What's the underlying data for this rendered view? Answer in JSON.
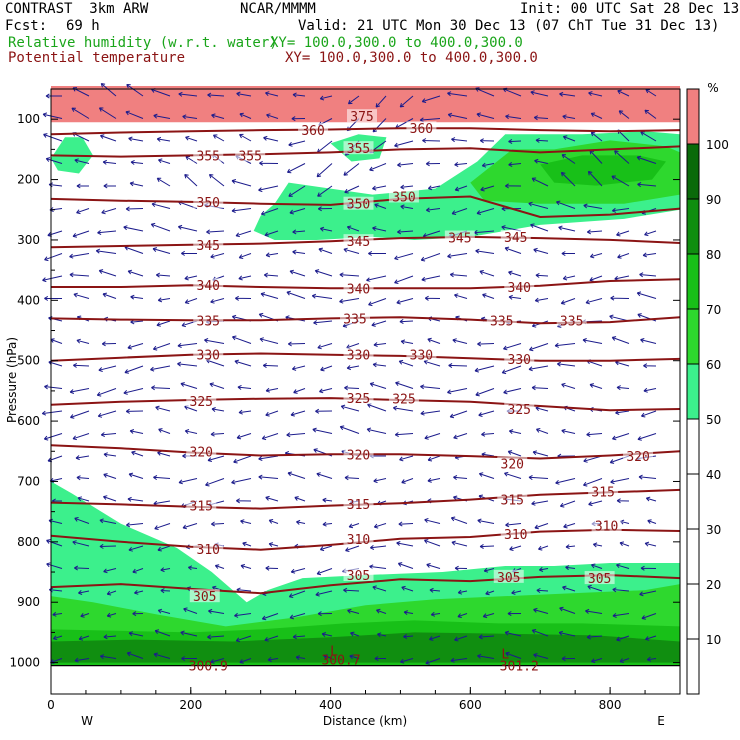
{
  "header": {
    "model": "CONTRAST  3km ARW",
    "org": "NCAR/MMMM",
    "init": "Init: 00 UTC Sat 28 Dec 13",
    "fcst_label": "Fcst:",
    "fcst_value": "69 h",
    "valid": "Valid: 21 UTC Mon 30 Dec 13 (07 ChT Tue 31 Dec 13)",
    "field1": "Relative humidity (w.r.t. water)",
    "field1_xy": "XY= 100.0,300.0 to 400.0,300.0",
    "field2": "Potential temperature",
    "field2_xy": "XY= 100.0,300.0 to 400.0,300.0"
  },
  "colors": {
    "theta": "#8b1414",
    "rh_text": "#1aa51a",
    "vector": "#1c1c8c",
    "rh_levels": [
      "#ffffff",
      "#ffffff",
      "#ffffff",
      "#ffffff",
      "#ffffff",
      "#3cf08c",
      "#2ed82e",
      "#18c018",
      "#108e10",
      "#0a6a0a",
      "#f08080"
    ]
  },
  "chart_data": {
    "type": "contour",
    "xlabel": "Distance (km)",
    "ylabel": "Pressure (hPa)",
    "xlim": [
      0,
      900
    ],
    "x_ticks": [
      0,
      200,
      400,
      600,
      800
    ],
    "x_tick_labels": [
      "0",
      "200",
      "400",
      "600",
      "800"
    ],
    "ylim": [
      1000,
      50
    ],
    "y_ticks": [
      100,
      200,
      300,
      400,
      500,
      600,
      700,
      800,
      900,
      1000
    ],
    "y_tick_labels": [
      "100",
      "200",
      "300",
      "400",
      "500",
      "600",
      "700",
      "800",
      "900",
      "1000"
    ],
    "west_label": "W",
    "east_label": "E",
    "colorbar": {
      "unit": "%",
      "levels": [
        0,
        10,
        20,
        30,
        40,
        50,
        60,
        70,
        80,
        90,
        100,
        110
      ],
      "tick_labels": [
        "10",
        "20",
        "30",
        "40",
        "50",
        "60",
        "70",
        "80",
        "90",
        "100"
      ]
    },
    "theta_contours": [
      {
        "value": 305,
        "x": [
          0,
          100,
          200,
          300,
          400,
          500,
          600,
          700,
          800,
          900
        ],
        "p": [
          875,
          870,
          878,
          885,
          872,
          862,
          865,
          858,
          855,
          860
        ]
      },
      {
        "value": 310,
        "x": [
          0,
          100,
          200,
          300,
          400,
          500,
          600,
          700,
          800,
          900
        ],
        "p": [
          790,
          800,
          808,
          813,
          805,
          795,
          792,
          783,
          780,
          782
        ]
      },
      {
        "value": 315,
        "x": [
          0,
          100,
          200,
          300,
          400,
          500,
          600,
          700,
          800,
          900
        ],
        "p": [
          735,
          738,
          742,
          745,
          740,
          736,
          730,
          722,
          718,
          714
        ]
      },
      {
        "value": 320,
        "x": [
          0,
          100,
          200,
          300,
          400,
          500,
          600,
          700,
          800,
          900
        ],
        "p": [
          640,
          645,
          652,
          657,
          655,
          655,
          658,
          662,
          657,
          650
        ]
      },
      {
        "value": 325,
        "x": [
          0,
          100,
          200,
          300,
          400,
          500,
          600,
          700,
          800,
          900
        ],
        "p": [
          573,
          568,
          565,
          563,
          562,
          565,
          568,
          575,
          582,
          580
        ]
      },
      {
        "value": 330,
        "x": [
          0,
          100,
          200,
          300,
          400,
          500,
          600,
          700,
          800,
          900
        ],
        "p": [
          500,
          495,
          490,
          488,
          490,
          492,
          496,
          500,
          500,
          497
        ]
      },
      {
        "value": 335,
        "x": [
          0,
          100,
          200,
          300,
          400,
          500,
          600,
          700,
          800,
          900
        ],
        "p": [
          430,
          432,
          433,
          433,
          430,
          428,
          432,
          438,
          436,
          428
        ]
      },
      {
        "value": 340,
        "x": [
          0,
          100,
          200,
          300,
          400,
          500,
          600,
          700,
          800,
          900
        ],
        "p": [
          378,
          378,
          375,
          378,
          380,
          380,
          380,
          376,
          368,
          365
        ]
      },
      {
        "value": 345,
        "x": [
          0,
          100,
          200,
          300,
          400,
          500,
          600,
          700,
          800,
          900
        ],
        "p": [
          312,
          310,
          308,
          306,
          302,
          297,
          295,
          297,
          300,
          305
        ]
      },
      {
        "value": 350,
        "x": [
          0,
          100,
          200,
          300,
          400,
          500,
          600,
          700,
          800,
          900
        ],
        "p": [
          232,
          235,
          237,
          240,
          242,
          232,
          228,
          262,
          258,
          248
        ]
      },
      {
        "value": 355,
        "x": [
          0,
          100,
          200,
          300,
          400,
          500,
          600,
          700,
          800,
          900
        ],
        "p": [
          160,
          162,
          160,
          158,
          155,
          150,
          148,
          155,
          150,
          145
        ]
      },
      {
        "value": 360,
        "x": [
          0,
          100,
          200,
          300,
          400,
          500,
          600,
          700,
          800,
          900
        ],
        "p": [
          125,
          122,
          120,
          118,
          117,
          115,
          115,
          118,
          120,
          118
        ]
      }
    ],
    "theta_labels": [
      {
        "text": "305",
        "x": 220,
        "p": 890
      },
      {
        "text": "305",
        "x": 440,
        "p": 855
      },
      {
        "text": "305",
        "x": 655,
        "p": 858
      },
      {
        "text": "305",
        "x": 785,
        "p": 860
      },
      {
        "text": "310",
        "x": 225,
        "p": 812
      },
      {
        "text": "310",
        "x": 440,
        "p": 795
      },
      {
        "text": "310",
        "x": 665,
        "p": 787
      },
      {
        "text": "310",
        "x": 795,
        "p": 773
      },
      {
        "text": "315",
        "x": 215,
        "p": 740
      },
      {
        "text": "315",
        "x": 440,
        "p": 737
      },
      {
        "text": "315",
        "x": 660,
        "p": 730
      },
      {
        "text": "315",
        "x": 790,
        "p": 717
      },
      {
        "text": "320",
        "x": 215,
        "p": 650
      },
      {
        "text": "320",
        "x": 440,
        "p": 655
      },
      {
        "text": "320",
        "x": 660,
        "p": 670
      },
      {
        "text": "320",
        "x": 840,
        "p": 658
      },
      {
        "text": "325",
        "x": 215,
        "p": 567
      },
      {
        "text": "325",
        "x": 440,
        "p": 562
      },
      {
        "text": "325",
        "x": 505,
        "p": 563
      },
      {
        "text": "325",
        "x": 670,
        "p": 580
      },
      {
        "text": "330",
        "x": 225,
        "p": 490
      },
      {
        "text": "330",
        "x": 440,
        "p": 490
      },
      {
        "text": "330",
        "x": 530,
        "p": 490
      },
      {
        "text": "330",
        "x": 670,
        "p": 497
      },
      {
        "text": "335",
        "x": 225,
        "p": 433
      },
      {
        "text": "335",
        "x": 435,
        "p": 430
      },
      {
        "text": "335",
        "x": 645,
        "p": 433
      },
      {
        "text": "335",
        "x": 745,
        "p": 433
      },
      {
        "text": "340",
        "x": 225,
        "p": 375
      },
      {
        "text": "340",
        "x": 440,
        "p": 380
      },
      {
        "text": "340",
        "x": 670,
        "p": 378
      },
      {
        "text": "345",
        "x": 225,
        "p": 308
      },
      {
        "text": "345",
        "x": 440,
        "p": 302
      },
      {
        "text": "345",
        "x": 585,
        "p": 296
      },
      {
        "text": "345",
        "x": 665,
        "p": 295
      },
      {
        "text": "350",
        "x": 225,
        "p": 237
      },
      {
        "text": "350",
        "x": 440,
        "p": 240
      },
      {
        "text": "350",
        "x": 505,
        "p": 228
      },
      {
        "text": "355",
        "x": 225,
        "p": 160
      },
      {
        "text": "355",
        "x": 285,
        "p": 160
      },
      {
        "text": "355",
        "x": 440,
        "p": 148
      },
      {
        "text": "360",
        "x": 375,
        "p": 118
      },
      {
        "text": "360",
        "x": 530,
        "p": 115
      },
      {
        "text": "375",
        "x": 445,
        "p": 95
      }
    ],
    "surface_labels": [
      {
        "text": "300.9",
        "x": 225,
        "p": 1005
      },
      {
        "text": "300.7",
        "x": 415,
        "p": 995
      },
      {
        "text": "301.2",
        "x": 670,
        "p": 1005
      }
    ],
    "low_markers": [
      {
        "text": "L",
        "x": 405,
        "p": 980
      },
      {
        "text": "L",
        "x": 650,
        "p": 985
      }
    ],
    "rh_regions": [
      {
        "level": 10,
        "points": [
          [
            0,
            45
          ],
          [
            900,
            45
          ],
          [
            900,
            105
          ],
          [
            0,
            105
          ]
        ]
      },
      {
        "level": 5,
        "points": [
          [
            0,
            910
          ],
          [
            0,
            700
          ],
          [
            30,
            720
          ],
          [
            100,
            770
          ],
          [
            180,
            810
          ],
          [
            230,
            850
          ],
          [
            280,
            900
          ],
          [
            310,
            880
          ],
          [
            360,
            860
          ],
          [
            450,
            855
          ],
          [
            560,
            850
          ],
          [
            650,
            840
          ],
          [
            720,
            840
          ],
          [
            800,
            835
          ],
          [
            900,
            835
          ],
          [
            900,
            1005
          ],
          [
            0,
            1005
          ]
        ]
      },
      {
        "level": 6,
        "points": [
          [
            0,
            1005
          ],
          [
            0,
            890
          ],
          [
            60,
            900
          ],
          [
            150,
            920
          ],
          [
            250,
            940
          ],
          [
            350,
            925
          ],
          [
            450,
            905
          ],
          [
            550,
            895
          ],
          [
            650,
            890
          ],
          [
            750,
            885
          ],
          [
            850,
            880
          ],
          [
            900,
            870
          ],
          [
            900,
            1005
          ]
        ]
      },
      {
        "level": 7,
        "points": [
          [
            0,
            1005
          ],
          [
            0,
            945
          ],
          [
            200,
            950
          ],
          [
            300,
            945
          ],
          [
            420,
            935
          ],
          [
            520,
            930
          ],
          [
            640,
            935
          ],
          [
            760,
            935
          ],
          [
            900,
            940
          ],
          [
            900,
            1005
          ]
        ]
      },
      {
        "level": 8,
        "points": [
          [
            0,
            1000
          ],
          [
            0,
            965
          ],
          [
            120,
            962
          ],
          [
            260,
            965
          ],
          [
            400,
            958
          ],
          [
            520,
            950
          ],
          [
            640,
            952
          ],
          [
            780,
            955
          ],
          [
            900,
            965
          ],
          [
            900,
            1000
          ]
        ]
      },
      {
        "level": 5,
        "points": [
          [
            0,
            165
          ],
          [
            20,
            130
          ],
          [
            45,
            130
          ],
          [
            60,
            160
          ],
          [
            40,
            190
          ],
          [
            10,
            185
          ]
        ]
      },
      {
        "level": 5,
        "points": [
          [
            340,
            205
          ],
          [
            400,
            215
          ],
          [
            460,
            225
          ],
          [
            550,
            215
          ],
          [
            610,
            170
          ],
          [
            650,
            125
          ],
          [
            760,
            125
          ],
          [
            850,
            120
          ],
          [
            900,
            125
          ],
          [
            900,
            250
          ],
          [
            820,
            265
          ],
          [
            700,
            275
          ],
          [
            600,
            295
          ],
          [
            520,
            300
          ],
          [
            460,
            295
          ],
          [
            380,
            300
          ],
          [
            320,
            300
          ],
          [
            290,
            285
          ],
          [
            300,
            260
          ],
          [
            320,
            240
          ]
        ]
      },
      {
        "level": 5,
        "points": [
          [
            400,
            140
          ],
          [
            440,
            125
          ],
          [
            480,
            130
          ],
          [
            470,
            165
          ],
          [
            430,
            170
          ]
        ]
      },
      {
        "level": 6,
        "points": [
          [
            600,
            205
          ],
          [
            660,
            150
          ],
          [
            720,
            150
          ],
          [
            800,
            135
          ],
          [
            880,
            145
          ],
          [
            900,
            155
          ],
          [
            900,
            225
          ],
          [
            820,
            240
          ],
          [
            700,
            240
          ],
          [
            620,
            235
          ]
        ]
      },
      {
        "level": 7,
        "points": [
          [
            700,
            175
          ],
          [
            760,
            160
          ],
          [
            840,
            160
          ],
          [
            880,
            170
          ],
          [
            860,
            200
          ],
          [
            780,
            210
          ],
          [
            720,
            205
          ]
        ]
      }
    ]
  }
}
